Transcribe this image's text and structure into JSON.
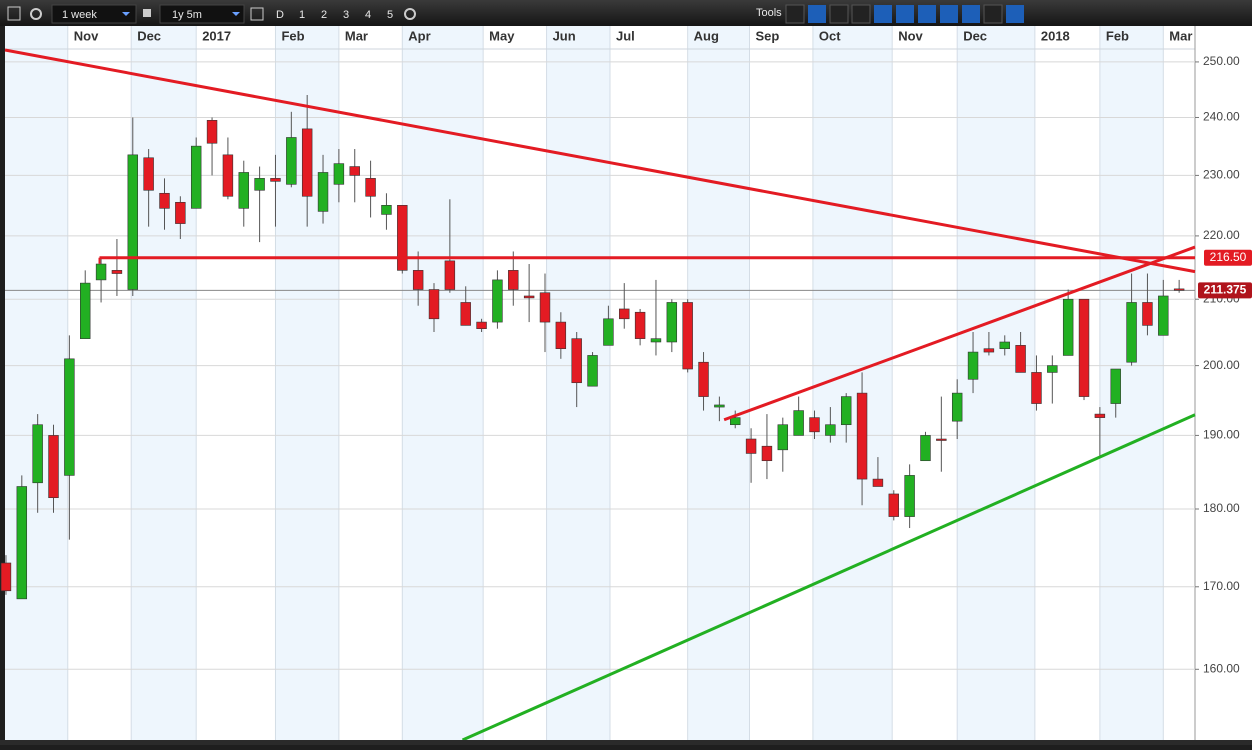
{
  "toolbar": {
    "interval": "1 week",
    "range": "1y 5m",
    "buttons": [
      "D",
      "1",
      "2",
      "3",
      "4",
      "5"
    ],
    "tools_label": "Tools"
  },
  "chart_data": {
    "type": "candlestick",
    "log_scale": true,
    "grid": true,
    "up_color": "#22b022",
    "down_color": "#e31b23",
    "xlim": [
      -0.06,
      75.0
    ],
    "xticks": [
      {
        "value": 3.9,
        "label": "Nov"
      },
      {
        "value": 7.9,
        "label": "Dec"
      },
      {
        "value": 12.0,
        "label": "2017"
      },
      {
        "value": 17.0,
        "label": "Feb"
      },
      {
        "value": 21.0,
        "label": "Mar"
      },
      {
        "value": 25.0,
        "label": "Apr"
      },
      {
        "value": 30.1,
        "label": "May"
      },
      {
        "value": 34.1,
        "label": "Jun"
      },
      {
        "value": 38.1,
        "label": "Jul"
      },
      {
        "value": 43.0,
        "label": "Aug"
      },
      {
        "value": 46.9,
        "label": "Sep"
      },
      {
        "value": 50.9,
        "label": "Oct"
      },
      {
        "value": 55.9,
        "label": "Nov"
      },
      {
        "value": 60.0,
        "label": "Dec"
      },
      {
        "value": 64.9,
        "label": "2018"
      },
      {
        "value": 69.0,
        "label": "Feb"
      },
      {
        "value": 73.0,
        "label": "Mar"
      }
    ],
    "ylim": [
      151.9,
      252.2
    ],
    "yticks": [
      {
        "value": 160,
        "label": "160.00"
      },
      {
        "value": 170,
        "label": "170.00"
      },
      {
        "value": 180,
        "label": "180.00"
      },
      {
        "value": 190,
        "label": "190.00"
      },
      {
        "value": 200,
        "label": "200.00"
      },
      {
        "value": 210,
        "label": "210.00"
      },
      {
        "value": 220,
        "label": "220.00"
      },
      {
        "value": 230,
        "label": "230.00"
      },
      {
        "value": 240,
        "label": "240.00"
      },
      {
        "value": 250,
        "label": "250.00"
      }
    ],
    "open": [
      173,
      168.5,
      183.5,
      190,
      184.5,
      204,
      213,
      214.5,
      211.5,
      233,
      227,
      225.5,
      224.5,
      239.5,
      233.5,
      224.5,
      227.5,
      229.5,
      228.5,
      238,
      224,
      228.5,
      231.5,
      229.5,
      223.5,
      225,
      214.5,
      211.5,
      216,
      209.5,
      206.5,
      206.5,
      214.5,
      210.5,
      211,
      206.5,
      204,
      197,
      203,
      208.5,
      208,
      203.5,
      203.5,
      209.5,
      200.5,
      194,
      191.5,
      189.5,
      188.5,
      188,
      190,
      192.5,
      190,
      191.5,
      196,
      184,
      182,
      179,
      186.5,
      189.5,
      192,
      198,
      202.5,
      202.5,
      203,
      199,
      199,
      201.5,
      210,
      193,
      194.5,
      200.5,
      209.5,
      204.5,
      211.6
    ],
    "high": [
      174,
      184.5,
      193,
      191.5,
      204.5,
      214.5,
      216.5,
      219.5,
      240,
      234.5,
      229.5,
      226.5,
      236.5,
      240,
      236.5,
      232.5,
      231.5,
      233.5,
      241,
      244,
      233.5,
      234.5,
      234.5,
      232.5,
      227,
      225,
      217.5,
      212.5,
      226,
      212,
      207,
      214.5,
      217.5,
      215.5,
      214,
      208,
      205,
      202,
      209,
      212.5,
      208.5,
      213,
      210,
      210,
      202,
      195.5,
      193.5,
      191,
      193,
      192.5,
      195.5,
      193.5,
      194,
      196,
      199,
      187,
      182.5,
      186,
      190.5,
      195.5,
      198,
      205,
      205,
      204.5,
      205,
      201.5,
      201.5,
      211.5,
      210,
      194,
      199.5,
      214,
      214,
      213,
      213
    ],
    "low": [
      169,
      168.5,
      179.5,
      179.5,
      176,
      204,
      209.5,
      210.5,
      210.5,
      221.5,
      221,
      219.5,
      224.5,
      230,
      226,
      221.5,
      219,
      221.5,
      228,
      221.5,
      222,
      225.5,
      225.5,
      223,
      221,
      214,
      209,
      205,
      211,
      206,
      205,
      205.5,
      209,
      206.5,
      202,
      201,
      194,
      197,
      203,
      205.5,
      203,
      201.5,
      202,
      199,
      193.5,
      192,
      191,
      183.5,
      184,
      185,
      190,
      189.5,
      189,
      189,
      180.5,
      183,
      178.5,
      177.5,
      186.5,
      185,
      189.5,
      196,
      201.5,
      201.5,
      199,
      193.5,
      194.5,
      201.5,
      195,
      187,
      192.5,
      200,
      204.5,
      204.5,
      211
    ],
    "close": [
      169.5,
      183,
      191.5,
      181.5,
      201,
      212.5,
      215.5,
      214,
      233.5,
      227.5,
      224.5,
      222,
      235,
      235.5,
      226.5,
      230.5,
      229.5,
      229,
      236.5,
      226.5,
      230.5,
      232,
      230,
      226.5,
      225,
      214.5,
      211.5,
      207,
      211.5,
      206,
      205.5,
      213,
      211.5,
      210.2,
      206.5,
      202.5,
      197.5,
      201.5,
      207,
      207,
      204,
      204,
      209.5,
      199.5,
      195.5,
      194.3,
      192.5,
      187.5,
      186.5,
      191.5,
      193.5,
      190.5,
      191.5,
      195.5,
      184,
      183,
      179,
      184.5,
      190,
      189.3,
      196,
      202,
      202,
      203.5,
      199,
      194.5,
      200,
      210,
      195.5,
      192.5,
      199.5,
      209.5,
      206,
      210.5,
      211.375
    ],
    "trendlines": [
      {
        "color": "#e31b23",
        "points": [
          [
            -0.06,
            252.2
          ],
          [
            75.0,
            214.3
          ]
        ]
      },
      {
        "color": "#e31b23",
        "points": [
          [
            45.3,
            192.2
          ],
          [
            75.0,
            218.2
          ]
        ]
      },
      {
        "color": "#22b022",
        "points": [
          [
            28.8,
            151.9
          ],
          [
            75.0,
            192.9
          ]
        ]
      }
    ],
    "level": {
      "value": 216.5,
      "label": "216.50",
      "start": 5.9,
      "color": "#e31b23"
    },
    "current_price": {
      "value": 211.375,
      "label": "211.375",
      "color": "#b0141c"
    }
  }
}
